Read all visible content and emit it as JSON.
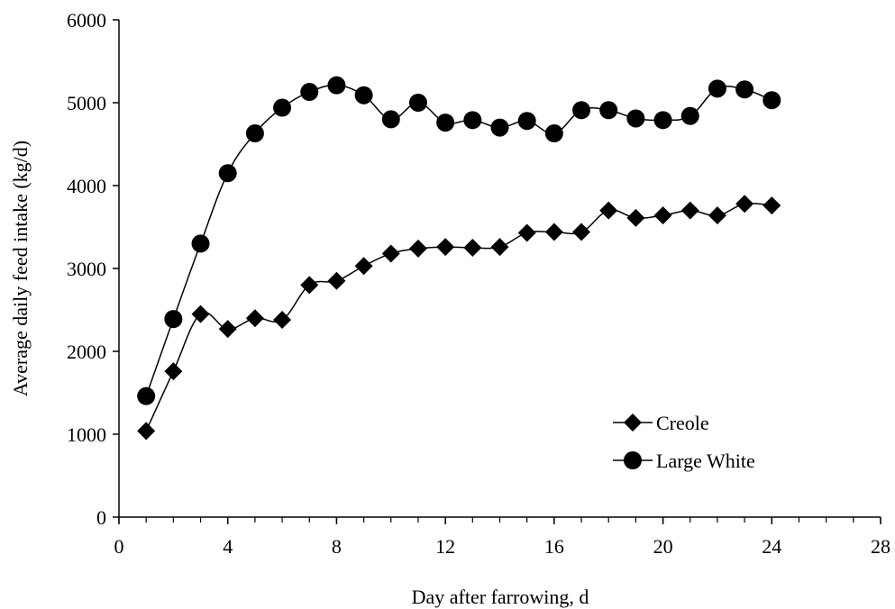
{
  "chart_data": {
    "type": "line",
    "title": "",
    "xlabel": "Day after farrowing, d",
    "ylabel": "Average daily feed intake (kg/d)",
    "xlim": [
      0,
      28
    ],
    "ylim": [
      0,
      6000
    ],
    "xticks": [
      0,
      4,
      8,
      12,
      16,
      20,
      24,
      28
    ],
    "yticks": [
      0,
      1000,
      2000,
      3000,
      4000,
      5000,
      6000
    ],
    "x_minor_step": 1,
    "grid": false,
    "legend_position": "bottom-right",
    "series": [
      {
        "name": "Creole",
        "marker": "diamond",
        "color": "#000000",
        "points": [
          [
            1,
            1040
          ],
          [
            2,
            1760
          ],
          [
            3,
            2450
          ],
          [
            4,
            2270
          ],
          [
            5,
            2400
          ],
          [
            6,
            2380
          ],
          [
            7,
            2800
          ],
          [
            8,
            2850
          ],
          [
            9,
            3030
          ],
          [
            10,
            3180
          ],
          [
            11,
            3240
          ],
          [
            12,
            3260
          ],
          [
            13,
            3250
          ],
          [
            14,
            3260
          ],
          [
            15,
            3430
          ],
          [
            16,
            3440
          ],
          [
            17,
            3440
          ],
          [
            18,
            3700
          ],
          [
            19,
            3610
          ],
          [
            20,
            3640
          ],
          [
            21,
            3700
          ],
          [
            22,
            3640
          ],
          [
            23,
            3780
          ],
          [
            24,
            3760
          ]
        ]
      },
      {
        "name": "Large White",
        "marker": "circle",
        "color": "#000000",
        "points": [
          [
            1,
            1460
          ],
          [
            2,
            2390
          ],
          [
            3,
            3300
          ],
          [
            4,
            4150
          ],
          [
            5,
            4630
          ],
          [
            6,
            4940
          ],
          [
            7,
            5130
          ],
          [
            8,
            5210
          ],
          [
            9,
            5090
          ],
          [
            10,
            4800
          ],
          [
            11,
            5000
          ],
          [
            12,
            4760
          ],
          [
            13,
            4790
          ],
          [
            14,
            4700
          ],
          [
            15,
            4780
          ],
          [
            16,
            4630
          ],
          [
            17,
            4910
          ],
          [
            18,
            4910
          ],
          [
            19,
            4810
          ],
          [
            20,
            4790
          ],
          [
            21,
            4840
          ],
          [
            22,
            5170
          ],
          [
            23,
            5160
          ],
          [
            24,
            5030
          ]
        ]
      }
    ]
  }
}
